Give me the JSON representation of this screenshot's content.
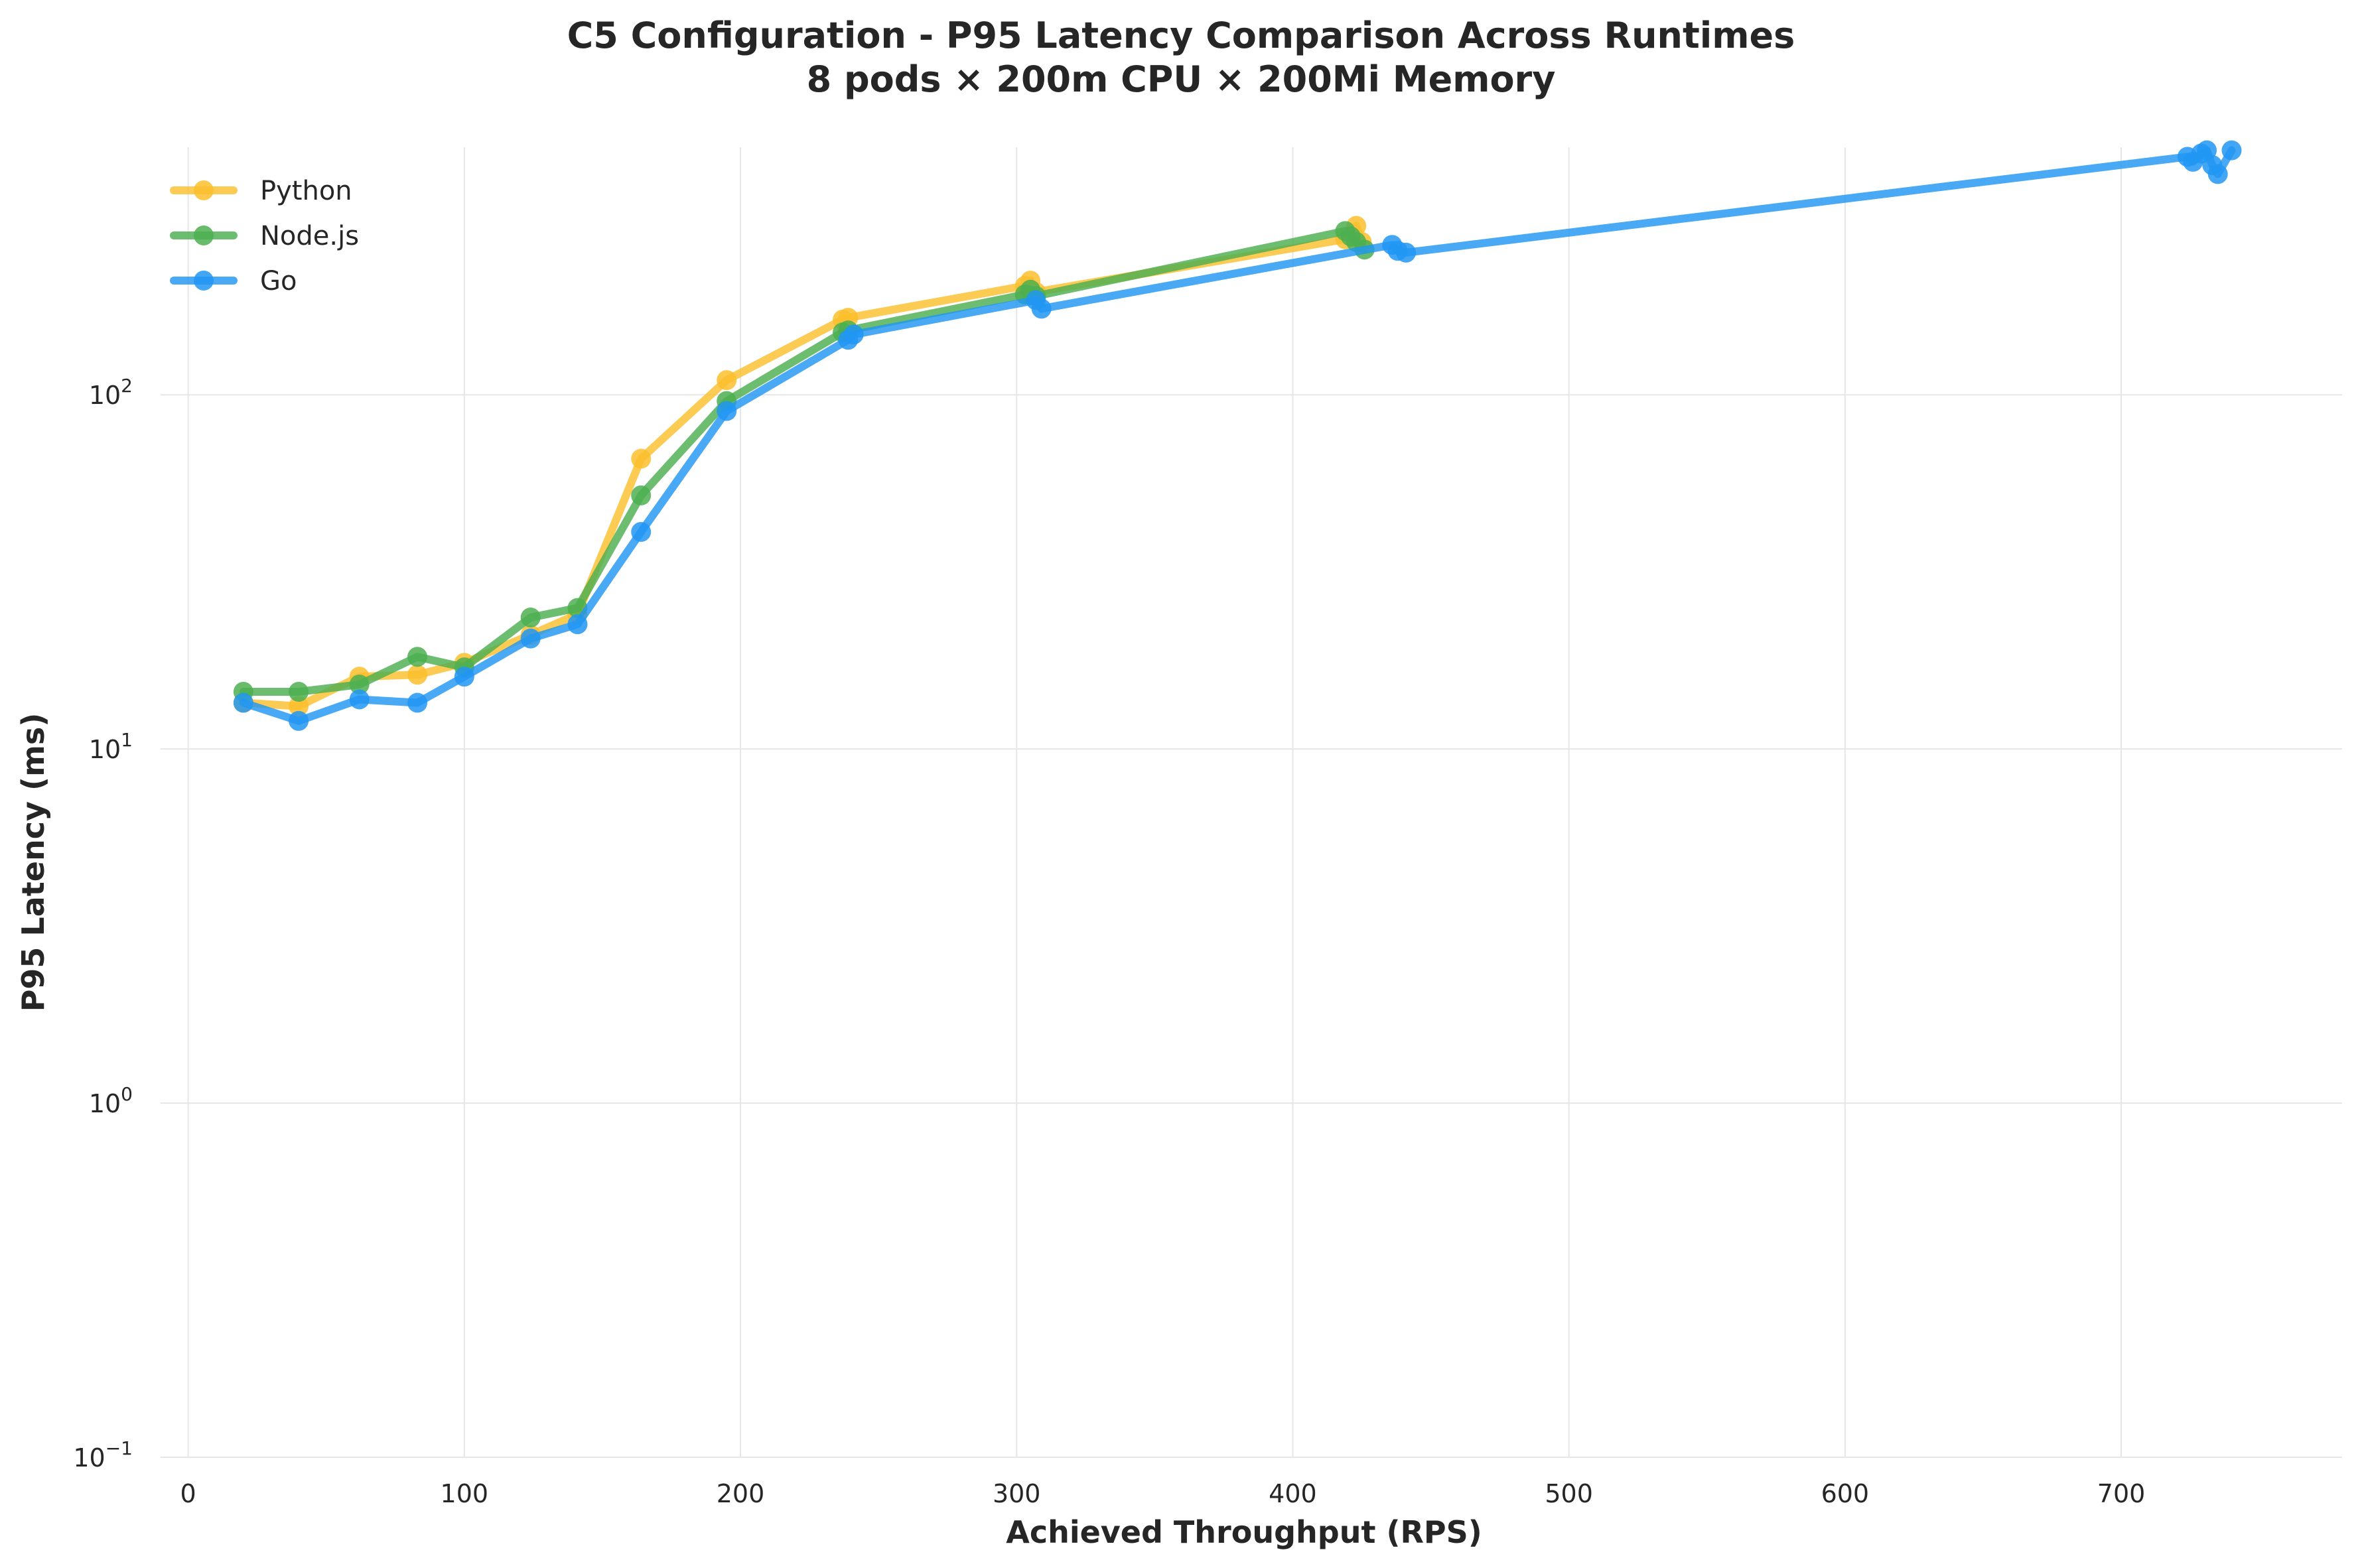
{
  "chart_data": {
    "type": "line",
    "title": [
      "C5 Configuration - P95 Latency Comparison Across Runtimes",
      "8 pods × 200m CPU × 200Mi Memory"
    ],
    "xlabel": "Achieved Throughput (RPS)",
    "ylabel": "P95 Latency (ms)",
    "xlim": [
      -10,
      780
    ],
    "ylim": [
      0.1,
      500
    ],
    "yscale": "log",
    "x_ticks": [
      0,
      100,
      200,
      300,
      400,
      500,
      600,
      700
    ],
    "y_ticks": [
      {
        "value": 0.1,
        "base": "10",
        "exp": "−1"
      },
      {
        "value": 1,
        "base": "10",
        "exp": "0"
      },
      {
        "value": 10,
        "base": "10",
        "exp": "1"
      },
      {
        "value": 100,
        "base": "10",
        "exp": "2"
      }
    ],
    "grid": true,
    "legend_position": "top-left",
    "series": [
      {
        "name": "Python",
        "color": "#FBC02D",
        "points": [
          [
            20,
            13.5
          ],
          [
            40,
            13.2
          ],
          [
            62,
            16
          ],
          [
            83,
            16.2
          ],
          [
            100,
            17.5
          ],
          [
            124,
            21
          ],
          [
            141,
            24
          ],
          [
            164,
            66
          ],
          [
            195,
            110
          ],
          [
            237,
            163
          ],
          [
            239,
            165
          ],
          [
            303,
            203
          ],
          [
            305,
            210
          ],
          [
            307,
            195
          ],
          [
            419,
            275
          ],
          [
            421,
            280
          ],
          [
            423,
            300
          ],
          [
            425,
            270
          ]
        ]
      },
      {
        "name": "Node.js",
        "color": "#4CAF50",
        "points": [
          [
            20,
            14.5
          ],
          [
            40,
            14.5
          ],
          [
            62,
            15.2
          ],
          [
            83,
            18.2
          ],
          [
            100,
            17
          ],
          [
            124,
            23.5
          ],
          [
            141,
            25
          ],
          [
            164,
            52
          ],
          [
            195,
            96
          ],
          [
            237,
            150
          ],
          [
            239,
            152
          ],
          [
            303,
            192
          ],
          [
            305,
            198
          ],
          [
            307,
            190
          ],
          [
            419,
            290
          ],
          [
            421,
            280
          ],
          [
            423,
            270
          ],
          [
            426,
            257
          ]
        ]
      },
      {
        "name": "Go",
        "color": "#2196F3",
        "points": [
          [
            20,
            13.5
          ],
          [
            40,
            12
          ],
          [
            62,
            13.8
          ],
          [
            83,
            13.5
          ],
          [
            100,
            16
          ],
          [
            124,
            20.5
          ],
          [
            141,
            22.5
          ],
          [
            164,
            41
          ],
          [
            195,
            90
          ],
          [
            239,
            143
          ],
          [
            241,
            148
          ],
          [
            307,
            185
          ],
          [
            309,
            175
          ],
          [
            436,
            265
          ],
          [
            438,
            255
          ],
          [
            441,
            252
          ],
          [
            724,
            470
          ],
          [
            726,
            455
          ],
          [
            729,
            480
          ],
          [
            731,
            490
          ],
          [
            733,
            445
          ],
          [
            735,
            420
          ],
          [
            740,
            490
          ]
        ]
      }
    ]
  }
}
